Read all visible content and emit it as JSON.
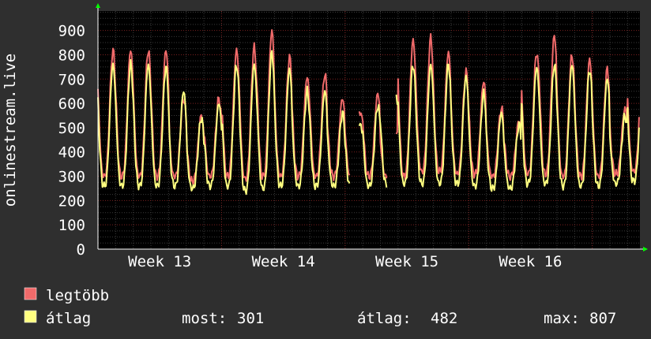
{
  "chart_data": {
    "type": "line",
    "ylabel": "onlinestream.live",
    "ylim": [
      0,
      980
    ],
    "yticks": [
      0,
      100,
      200,
      300,
      400,
      500,
      600,
      700,
      800,
      900
    ],
    "xticks": [
      {
        "label": "Week 13",
        "x": 3.5
      },
      {
        "label": "Week 14",
        "x": 10.5
      },
      {
        "label": "Week 15",
        "x": 17.5
      },
      {
        "label": "Week 16",
        "x": 24.5
      }
    ],
    "xlim": [
      0,
      30.7
    ],
    "x_unit": "days",
    "gaps": [
      [
        14.3,
        14.8
      ],
      [
        16.4,
        16.9
      ]
    ],
    "grid": true,
    "colors": {
      "background": "#000000",
      "frame": "#2f2f2f",
      "major_grid": "#7a1f1f",
      "minor_grid": "#3a3a3a",
      "legtobb": "#f06a6a",
      "atlag": "#ffff80",
      "axis_arrow": "#00ff00"
    },
    "series": [
      {
        "name": "legtöbb",
        "color": "#f06a6a",
        "daily_max": [
          820,
          820,
          820,
          820,
          620,
          550,
          620,
          820,
          830,
          900,
          790,
          710,
          720,
          620,
          570,
          640,
          500,
          860,
          870,
          810,
          730,
          690,
          580,
          530,
          810,
          880,
          800,
          780,
          740,
          580,
          750
        ],
        "daily_min": [
          300,
          300,
          300,
          300,
          300,
          280,
          300,
          300,
          290,
          300,
          300,
          300,
          300,
          300,
          290,
          300,
          300,
          300,
          320,
          320,
          310,
          310,
          300,
          300,
          310,
          310,
          300,
          300,
          300,
          310,
          320
        ]
      },
      {
        "name": "átlag",
        "color": "#ffff80",
        "daily_max": [
          760,
          760,
          760,
          750,
          650,
          540,
          600,
          760,
          760,
          810,
          740,
          650,
          650,
          560,
          520,
          590,
          650,
          760,
          760,
          760,
          710,
          640,
          560,
          510,
          750,
          760,
          760,
          740,
          700,
          550,
          700
        ],
        "daily_min": [
          260,
          260,
          260,
          260,
          260,
          250,
          260,
          260,
          240,
          250,
          260,
          260,
          260,
          260,
          250,
          260,
          270,
          270,
          270,
          270,
          270,
          260,
          250,
          250,
          270,
          270,
          260,
          260,
          260,
          270,
          280
        ]
      }
    ],
    "legend": [
      {
        "label": "legtöbb",
        "color": "#f06a6a"
      },
      {
        "label": "átlag",
        "color": "#ffff80"
      }
    ],
    "stats": {
      "most_label": "most:",
      "most_value": "301",
      "atlag_label": "átlag:",
      "atlag_value": "482",
      "max_label": "max:",
      "max_value": "807"
    }
  }
}
